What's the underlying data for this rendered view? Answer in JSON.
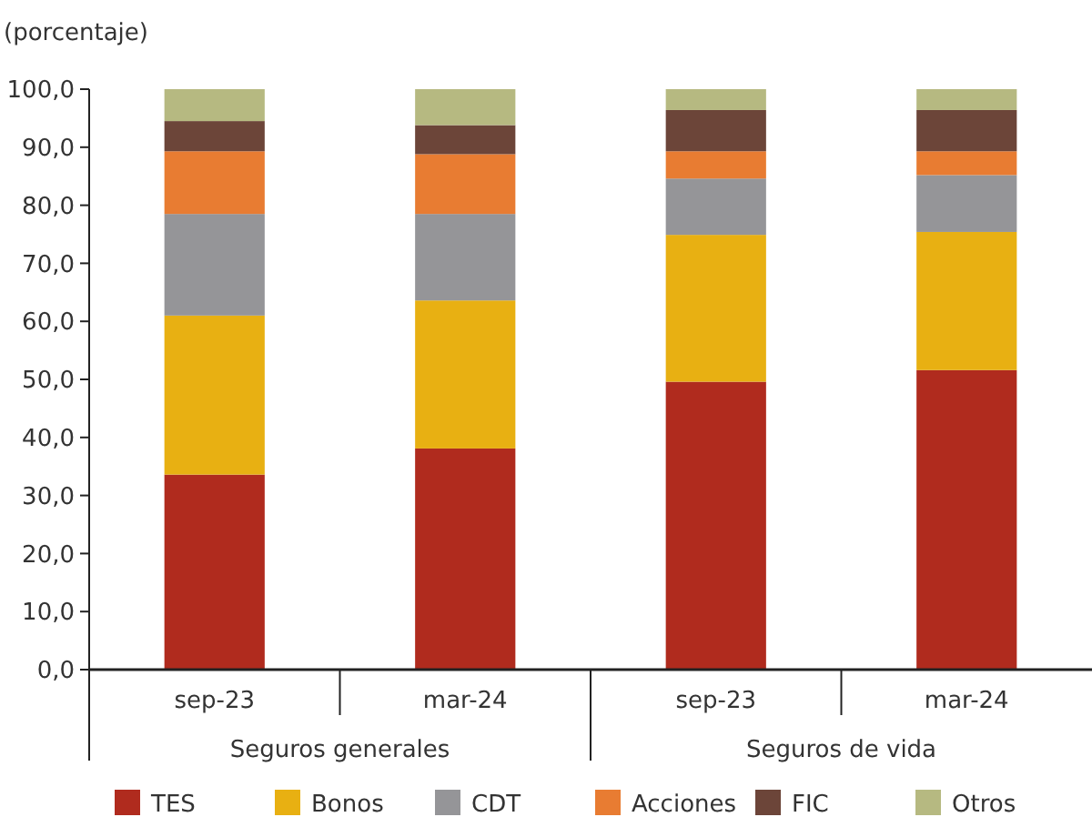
{
  "chart_data": {
    "type": "bar",
    "stacked": true,
    "ylabel": "(porcentaje)",
    "categories": [
      "sep-23",
      "mar-24",
      "sep-23",
      "mar-24"
    ],
    "annotations": [
      "Seguros generales",
      "Seguros de vida"
    ],
    "series": [
      {
        "name": "TES",
        "color": "#b02b1e",
        "values": [
          33.6,
          38.1,
          49.6,
          51.6
        ]
      },
      {
        "name": "Bonos",
        "color": "#e8b012",
        "values": [
          27.4,
          25.5,
          25.3,
          23.8
        ]
      },
      {
        "name": "CDT",
        "color": "#959598",
        "values": [
          17.5,
          14.9,
          9.7,
          9.8
        ]
      },
      {
        "name": "Acciones",
        "color": "#e87c32",
        "values": [
          10.8,
          10.3,
          4.7,
          4.1
        ]
      },
      {
        "name": "FIC",
        "color": "#6c4539",
        "values": [
          5.2,
          5.0,
          7.1,
          7.1
        ]
      },
      {
        "name": "Otros",
        "color": "#b6b981",
        "values": [
          5.5,
          6.2,
          3.6,
          3.6
        ]
      }
    ],
    "ylim": [
      0,
      100
    ],
    "yticks": [
      {
        "value": 0,
        "label": "0,0"
      },
      {
        "value": 10,
        "label": "10,0"
      },
      {
        "value": 20,
        "label": "20,0"
      },
      {
        "value": 30,
        "label": "30,0"
      },
      {
        "value": 40,
        "label": "40,0"
      },
      {
        "value": 50,
        "label": "50,0"
      },
      {
        "value": 60,
        "label": "60,0"
      },
      {
        "value": 70,
        "label": "70,0"
      },
      {
        "value": 80,
        "label": "80,0"
      },
      {
        "value": 90,
        "label": "90,0"
      },
      {
        "value": 100,
        "label": "100,0"
      }
    ],
    "grid": false,
    "legend": "bottom"
  }
}
